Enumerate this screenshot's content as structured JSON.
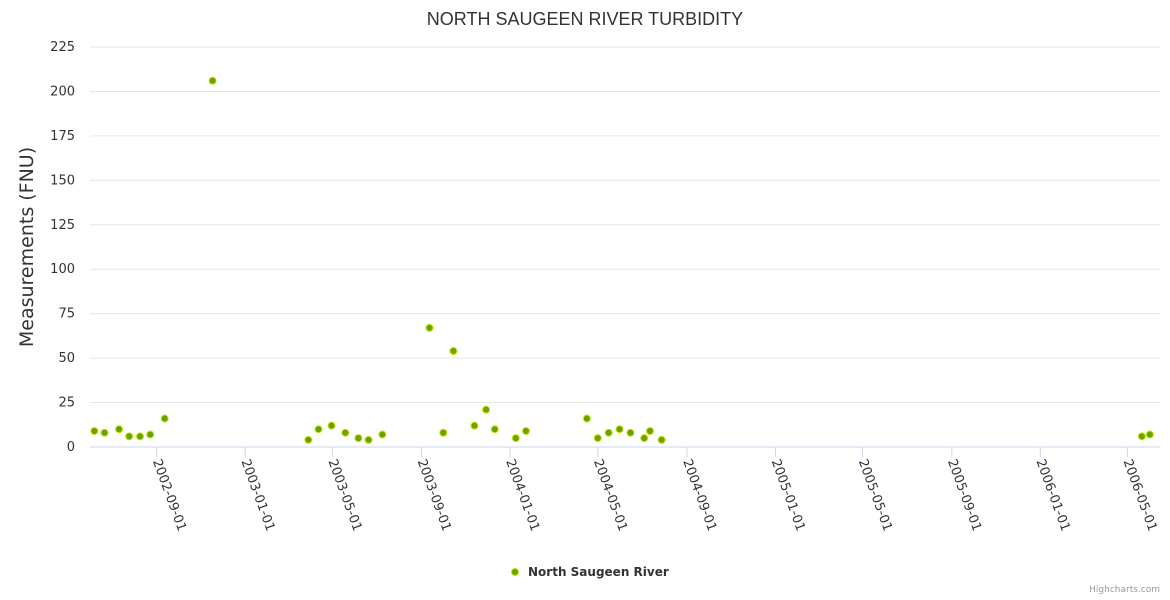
{
  "chart_data": {
    "type": "scatter",
    "title": "NORTH SAUGEEN RIVER TURBIDITY",
    "ylabel": "Measurements (FNU)",
    "xlabel": "",
    "ylim": [
      0,
      225
    ],
    "yticks": [
      0,
      25,
      50,
      75,
      100,
      125,
      150,
      175,
      200,
      225
    ],
    "xlim": [
      "2002-06-01",
      "2006-06-15"
    ],
    "xticks": [
      "2002-09-01",
      "2003-01-01",
      "2003-05-01",
      "2003-09-01",
      "2004-01-01",
      "2004-05-01",
      "2004-09-01",
      "2005-01-01",
      "2005-05-01",
      "2005-09-01",
      "2006-01-01",
      "2006-05-01"
    ],
    "grid": true,
    "legend_position": "bottom-center",
    "series": [
      {
        "name": "North Saugeen River",
        "color": "#6aa000",
        "points": [
          {
            "x": "2002-06-07",
            "y": 9
          },
          {
            "x": "2002-06-21",
            "y": 8
          },
          {
            "x": "2002-07-11",
            "y": 10
          },
          {
            "x": "2002-07-25",
            "y": 6
          },
          {
            "x": "2002-08-09",
            "y": 6
          },
          {
            "x": "2002-08-23",
            "y": 7
          },
          {
            "x": "2002-09-12",
            "y": 16
          },
          {
            "x": "2002-11-17",
            "y": 206
          },
          {
            "x": "2003-03-29",
            "y": 4
          },
          {
            "x": "2003-04-12",
            "y": 10
          },
          {
            "x": "2003-04-30",
            "y": 12
          },
          {
            "x": "2003-05-19",
            "y": 8
          },
          {
            "x": "2003-06-06",
            "y": 5
          },
          {
            "x": "2003-06-20",
            "y": 4
          },
          {
            "x": "2003-07-09",
            "y": 7
          },
          {
            "x": "2003-09-12",
            "y": 67
          },
          {
            "x": "2003-10-01",
            "y": 8
          },
          {
            "x": "2003-10-15",
            "y": 54
          },
          {
            "x": "2003-11-13",
            "y": 12
          },
          {
            "x": "2003-11-29",
            "y": 21
          },
          {
            "x": "2003-12-11",
            "y": 10
          },
          {
            "x": "2004-01-09",
            "y": 5
          },
          {
            "x": "2004-01-23",
            "y": 9
          },
          {
            "x": "2004-04-16",
            "y": 16
          },
          {
            "x": "2004-05-01",
            "y": 5
          },
          {
            "x": "2004-05-16",
            "y": 8
          },
          {
            "x": "2004-05-31",
            "y": 10
          },
          {
            "x": "2004-06-15",
            "y": 8
          },
          {
            "x": "2004-07-04",
            "y": 5
          },
          {
            "x": "2004-07-12",
            "y": 9
          },
          {
            "x": "2004-07-28",
            "y": 4
          },
          {
            "x": "2006-05-21",
            "y": 6
          },
          {
            "x": "2006-06-01",
            "y": 7
          }
        ]
      }
    ],
    "credits": "Highcharts.com"
  }
}
